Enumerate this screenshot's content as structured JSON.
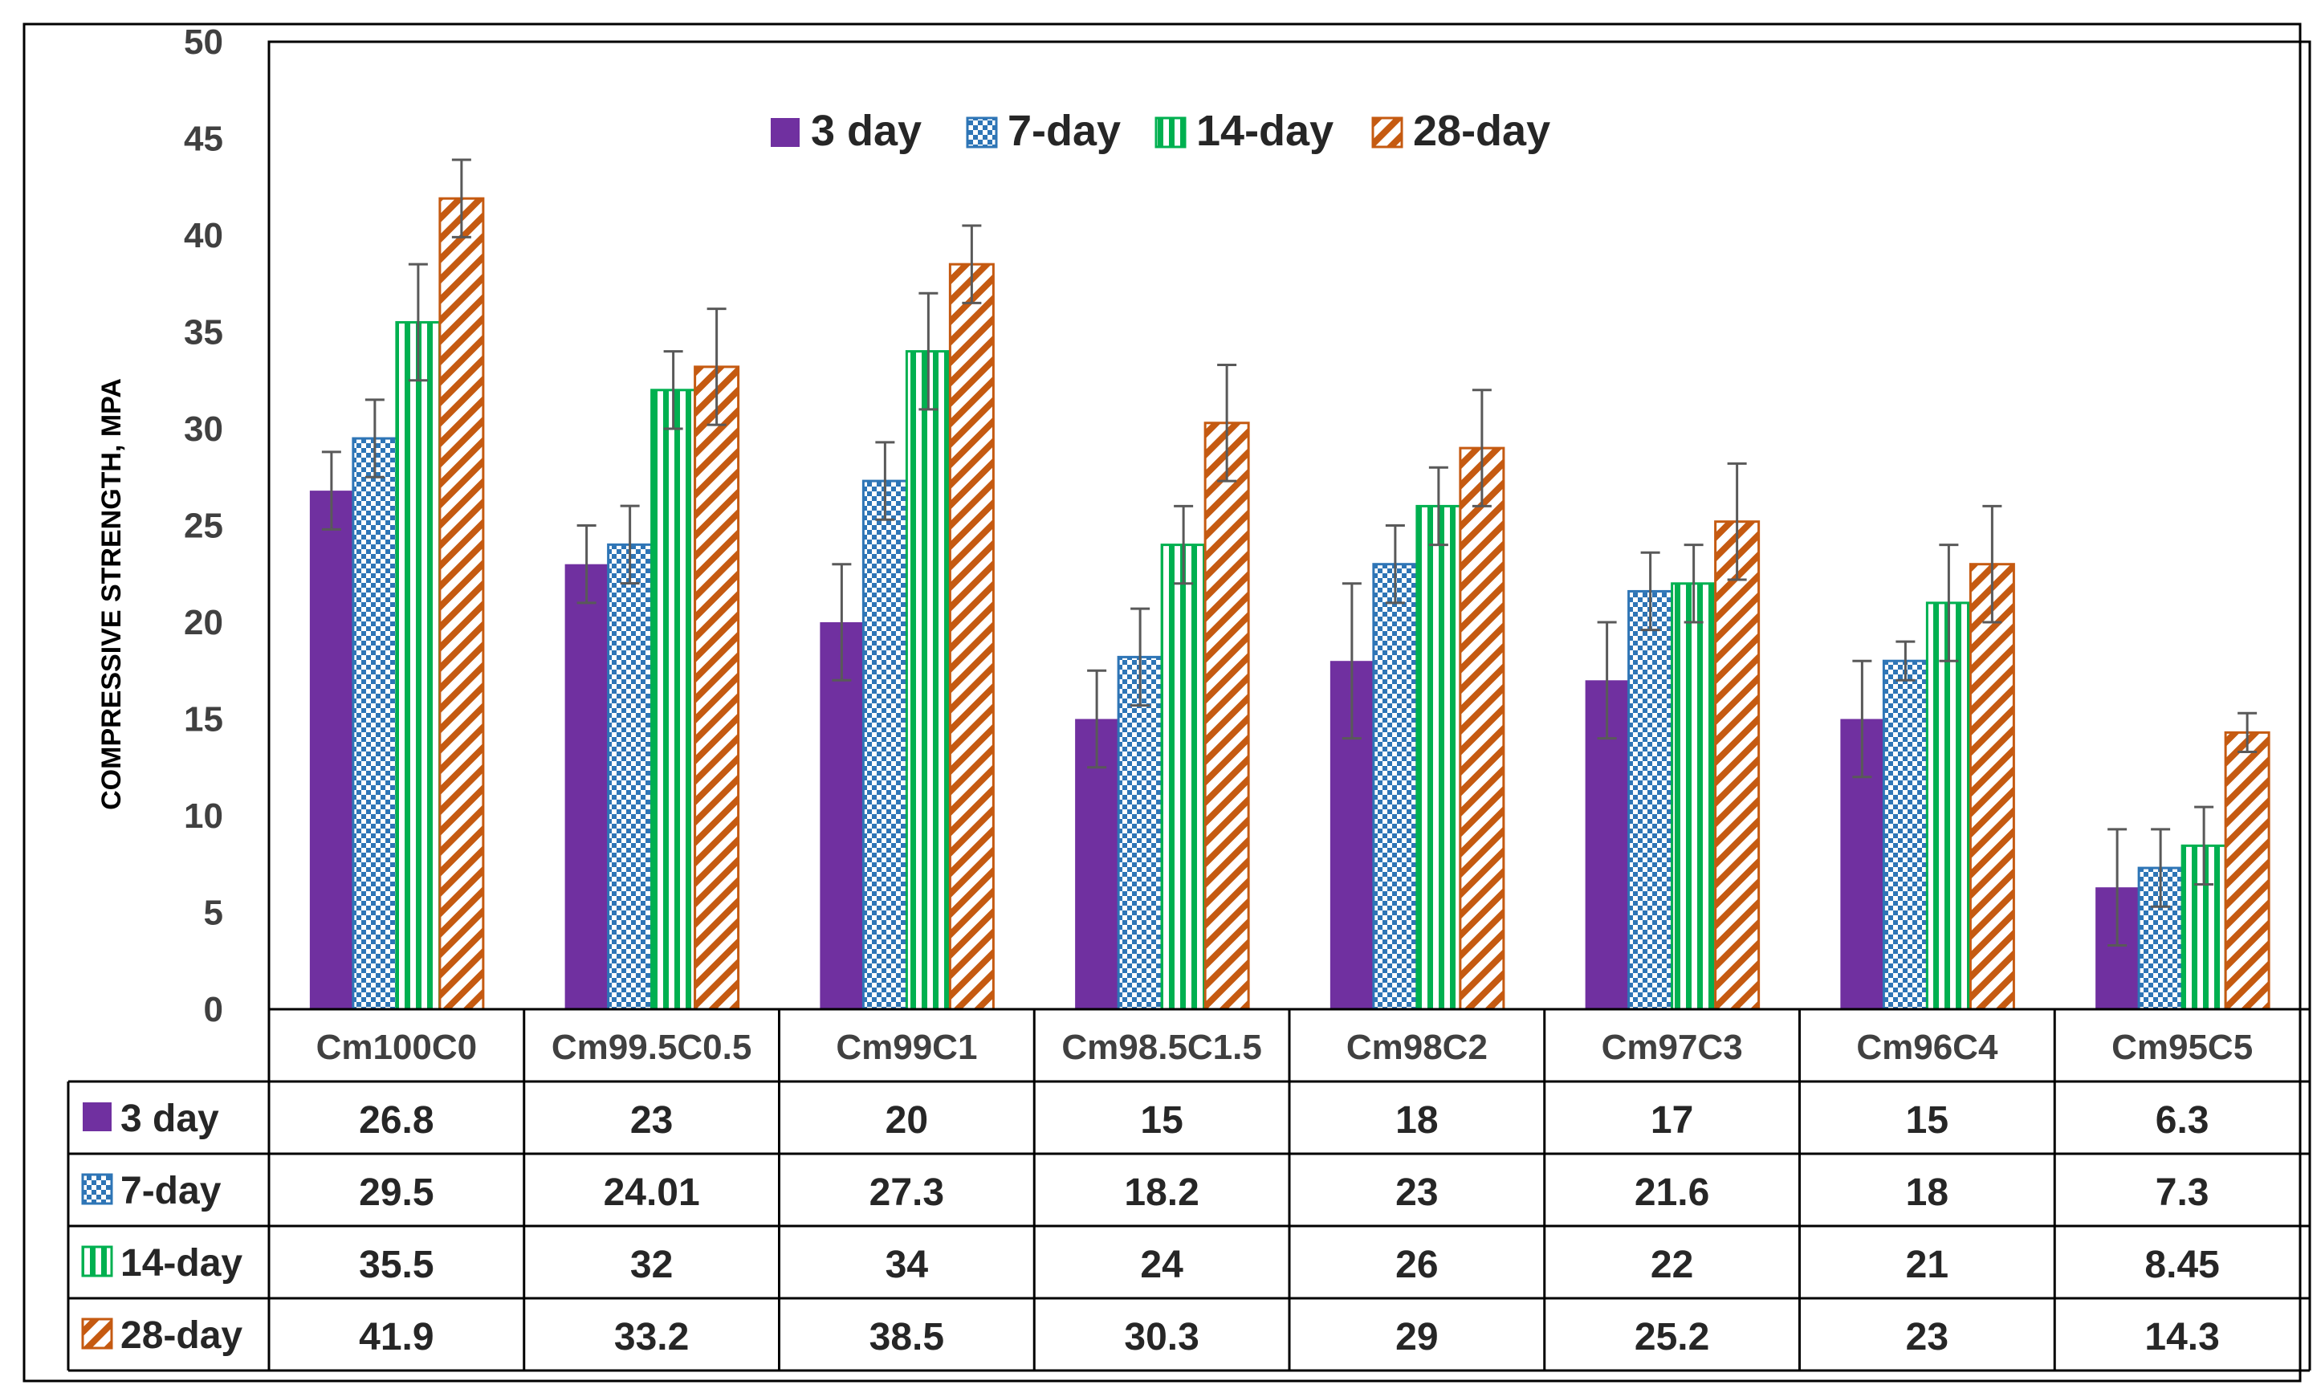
{
  "chart_data": {
    "type": "bar",
    "title": "",
    "xlabel": "",
    "ylabel": "COMPRESSIVE STRENGTH, MPA",
    "ylim": [
      0,
      50
    ],
    "yticks": [
      0,
      5,
      10,
      15,
      20,
      25,
      30,
      35,
      40,
      45,
      50
    ],
    "legend_position": "top-center",
    "grid": false,
    "categories": [
      "Cm100C0",
      "Cm99.5C0.5",
      "Cm99C1",
      "Cm98.5C1.5",
      "Cm98C2",
      "Cm97C3",
      "Cm96C4",
      "Cm95C5"
    ],
    "series": [
      {
        "name": "3 day",
        "color": "#7030a0",
        "pattern": "solid",
        "values": [
          26.8,
          23,
          20,
          15,
          18,
          17,
          15,
          6.3
        ],
        "error": [
          2,
          2,
          3,
          2.5,
          4,
          3,
          3,
          3
        ]
      },
      {
        "name": "7-day",
        "color": "#2e75b6",
        "pattern": "checker",
        "values": [
          29.5,
          24.01,
          27.3,
          18.2,
          23,
          21.6,
          18,
          7.3
        ],
        "error": [
          2,
          2,
          2,
          2.5,
          2,
          2,
          1,
          2
        ]
      },
      {
        "name": "14-day",
        "color": "#00b050",
        "pattern": "vertical",
        "values": [
          35.5,
          32,
          34,
          24,
          26,
          22,
          21,
          8.45
        ],
        "error": [
          3,
          2,
          3,
          2,
          2,
          2,
          3,
          2
        ]
      },
      {
        "name": "28-day",
        "color": "#c55a11",
        "pattern": "diagonal",
        "values": [
          41.9,
          33.2,
          38.5,
          30.3,
          29,
          25.2,
          23,
          14.3
        ],
        "error": [
          2,
          3,
          2,
          3,
          3,
          3,
          3,
          1
        ]
      }
    ],
    "table_cells": [
      [
        "26.8",
        "23",
        "20",
        "15",
        "18",
        "17",
        "15",
        "6.3"
      ],
      [
        "29.5",
        "24.01",
        "27.3",
        "18.2",
        "23",
        "21.6",
        "18",
        "7.3"
      ],
      [
        "35.5",
        "32",
        "34",
        "24",
        "26",
        "22",
        "21",
        "8.45"
      ],
      [
        "41.9",
        "33.2",
        "38.5",
        "30.3",
        "29",
        "25.2",
        "23",
        "14.3"
      ]
    ]
  }
}
